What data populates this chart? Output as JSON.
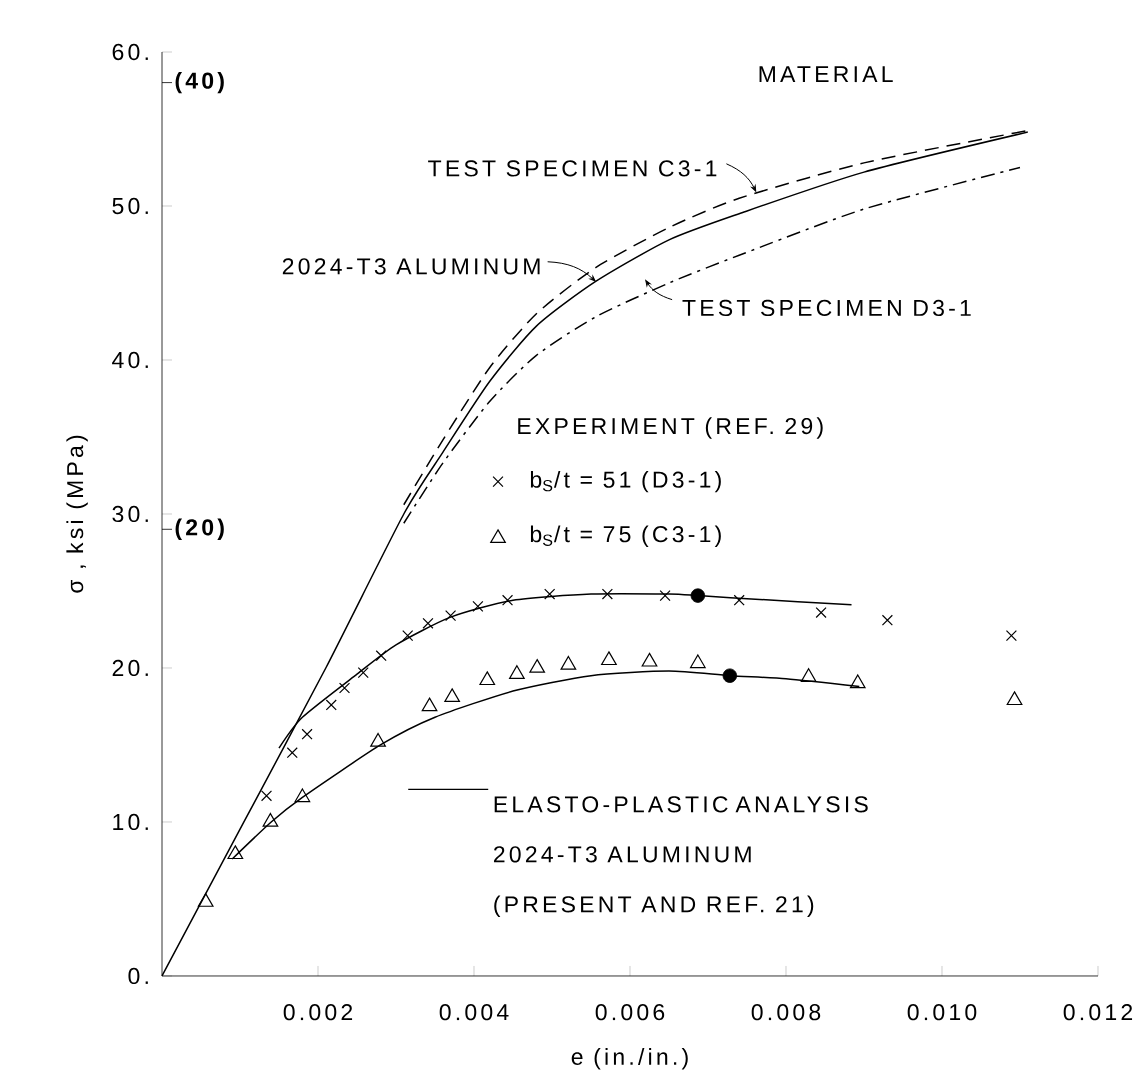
{
  "chart_data": {
    "type": "line",
    "xlabel": "e (in./in.)",
    "ylabel": "σ , ksi (MPa)",
    "xlim": [
      0,
      0.012
    ],
    "xticks": [
      0.002,
      0.004,
      0.006,
      0.008,
      {
        "value": 0.01,
        "label": "0.010"
      },
      0.012
    ],
    "ylim": [
      0,
      60
    ],
    "yticks": [
      {
        "value": 0,
        "label": "0."
      },
      {
        "value": 10,
        "label": "10."
      },
      {
        "value": 20,
        "label": "20."
      },
      {
        "value": 30,
        "label": "30."
      },
      {
        "value": 40,
        "label": "40."
      },
      {
        "value": 50,
        "label": "50."
      },
      {
        "value": 60,
        "label": "60."
      }
    ],
    "y2lim": [
      0,
      41.37
    ],
    "y2ticks": [
      {
        "value": 20,
        "label": "(20)"
      },
      {
        "value": 40,
        "label": "(40)"
      }
    ],
    "legend": "center",
    "legend_title": "EXPERIMENT (REF. 29)",
    "annotations": [
      "MATERIAL"
    ],
    "series": [
      {
        "name": "2024-T3 ALUMINUM",
        "type": "line",
        "color": "#000000",
        "line_style": "solid",
        "x": [
          0,
          0.00105,
          0.0021,
          0.0031,
          0.0036,
          0.0042,
          0.0048,
          0.00556,
          0.0065,
          0.0074,
          0.009,
          0.0111
        ],
        "values": [
          0,
          10,
          20,
          30,
          34,
          38.6,
          42.2,
          45.1,
          47.8,
          49.5,
          52.2,
          54.8
        ]
      },
      {
        "name": "TEST SPECIMEN C3-1",
        "type": "line",
        "color": "#000000",
        "line_style": "dashed",
        "x": [
          0.0031,
          0.0036,
          0.0042,
          0.0048,
          0.00556,
          0.0065,
          0.0074,
          0.009,
          0.0111
        ],
        "values": [
          30.6,
          34.8,
          39.5,
          43.0,
          46.0,
          48.6,
          50.5,
          52.8,
          54.9
        ]
      },
      {
        "name": "TEST SPECIMEN D3-1",
        "type": "line",
        "color": "#000000",
        "line_style": "dashdot",
        "x": [
          0.0031,
          0.0036,
          0.0042,
          0.0048,
          0.00556,
          0.0065,
          0.0074,
          0.009,
          0.011
        ],
        "values": [
          29.4,
          33.3,
          37.3,
          40.3,
          42.8,
          45.0,
          46.8,
          49.8,
          52.5
        ]
      },
      {
        "name": "b$_{S}$/t = 51  (D3-1)",
        "type": "scatter",
        "color": "#000000",
        "marker": "cross",
        "x": [
          0.00134,
          0.00167,
          0.00186,
          0.00217,
          0.00234,
          0.00258,
          0.00281,
          0.00315,
          0.00341,
          0.0037,
          0.00405,
          0.00443,
          0.00497,
          0.00571,
          0.00645,
          0.0074,
          0.00845,
          0.0093,
          0.01089
        ],
        "values": [
          11.7,
          14.5,
          15.7,
          17.6,
          18.7,
          19.7,
          20.8,
          22.1,
          22.9,
          23.4,
          24.0,
          24.4,
          24.8,
          24.8,
          24.7,
          24.4,
          23.6,
          23.1,
          22.1
        ]
      },
      {
        "name": "b$_{S}$/t = 75  (C3-1)",
        "type": "scatter",
        "color": "#000000",
        "marker": "triangle",
        "x": [
          0.00056,
          0.00094,
          0.00139,
          0.0018,
          0.00277,
          0.00343,
          0.00372,
          0.00417,
          0.00455,
          0.00481,
          0.00521,
          0.00573,
          0.00625,
          0.00687,
          0.00829,
          0.00892,
          0.01093
        ],
        "values": [
          4.8,
          7.9,
          10.0,
          11.6,
          15.2,
          17.5,
          18.1,
          19.2,
          19.6,
          20.0,
          20.2,
          20.5,
          20.4,
          20.3,
          19.4,
          19.0,
          17.9
        ]
      },
      {
        "name": "ELASTO-PLASTIC ANALYSIS 2024-T3 ALUMINUM (PRESENT AND REF. 21)",
        "type": "line",
        "color": "#000000",
        "line_style": "solid",
        "x": [
          0.0015,
          0.0018,
          0.0025,
          0.003,
          0.0037,
          0.0045,
          0.0055,
          0.0065,
          0.00687,
          0.0075,
          0.00884
        ],
        "values": [
          14.8,
          16.8,
          19.6,
          21.5,
          23.3,
          24.4,
          24.8,
          24.8,
          24.7,
          24.5,
          24.1
        ]
      },
      {
        "type": "line",
        "color": "#000000",
        "line_style": "solid",
        "x": [
          0.0009,
          0.0014,
          0.0018,
          0.0028,
          0.0035,
          0.0045,
          0.0055,
          0.0065,
          0.00728,
          0.008,
          0.00894
        ],
        "values": [
          7.6,
          10.0,
          11.6,
          15.0,
          16.8,
          18.5,
          19.5,
          19.8,
          19.5,
          19.3,
          18.8
        ]
      },
      {
        "type": "scatter",
        "color": "#000000",
        "marker": "circle",
        "x": [
          0.00687,
          0.00728
        ],
        "values": [
          24.7,
          19.5
        ]
      }
    ]
  }
}
